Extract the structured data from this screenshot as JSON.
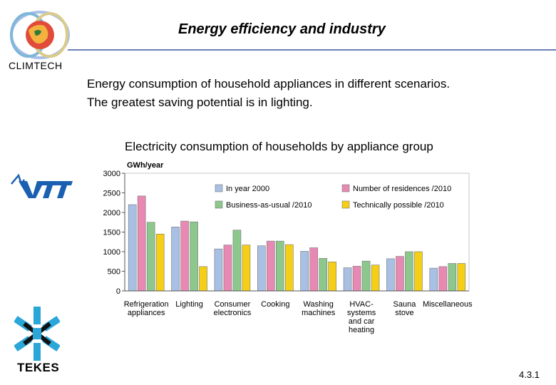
{
  "header": {
    "title": "Energy efficiency and industry",
    "brand": "CLIMTECH"
  },
  "subtitle": {
    "line1": "Energy consumption of household appliances in different scenarios.",
    "line2": "The greatest saving potential is in lighting."
  },
  "logos": {
    "left_mid": "vtt-logo",
    "left_bottom": "TEKES"
  },
  "page_number": "4.3.1",
  "colors": {
    "in_year_2000": "#a8c0e4",
    "number_of_residences": "#e889b4",
    "business_as_usual": "#8cc88c",
    "technically_possible": "#f4cf16",
    "title_rule": "#6a7fb5"
  },
  "chart_data": {
    "type": "bar",
    "title": "Electricity consumption of households by appliance group",
    "ylabel": "GWh/year",
    "xlabel": "",
    "ylim": [
      0,
      3000
    ],
    "yticks": [
      0,
      500,
      1000,
      1500,
      2000,
      2500,
      3000
    ],
    "categories": [
      [
        "Refrigeration",
        "appliances"
      ],
      [
        "Lighting"
      ],
      [
        "Consumer",
        "electronics"
      ],
      [
        "Cooking"
      ],
      [
        "Washing",
        "machines"
      ],
      [
        "HVAC-",
        "systems",
        "and car",
        "heating"
      ],
      [
        "Sauna",
        "stove"
      ],
      [
        "Miscellaneous"
      ]
    ],
    "series": [
      {
        "name": "In year 2000",
        "color": "#a8c0e4",
        "values": [
          2200,
          1630,
          1070,
          1150,
          1010,
          590,
          820,
          580
        ]
      },
      {
        "name": "Number of residences /2010",
        "color": "#e889b4",
        "values": [
          2420,
          1780,
          1170,
          1270,
          1100,
          630,
          880,
          620
        ]
      },
      {
        "name": "Business-as-usual /2010",
        "color": "#8cc88c",
        "values": [
          1750,
          1760,
          1550,
          1270,
          830,
          760,
          1000,
          700
        ]
      },
      {
        "name": "Technically possible /2010",
        "color": "#f4cf16",
        "values": [
          1450,
          620,
          1170,
          1180,
          740,
          660,
          1000,
          700
        ]
      }
    ],
    "legend": [
      [
        "In year 2000",
        "Number of residences /2010"
      ],
      [
        "Business-as-usual /2010",
        "Technically possible /2010"
      ]
    ],
    "grid": false,
    "legend_position": "top-right"
  }
}
